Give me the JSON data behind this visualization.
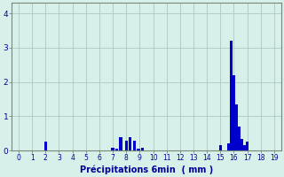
{
  "xlabel": "Précipitations 6min  ( mm )",
  "ylabel": "",
  "bar_color": "#0000cc",
  "background_color": "#d8f0ea",
  "grid_color": "#aaccc0",
  "xlim": [
    -0.5,
    19.5
  ],
  "ylim": [
    0,
    4.3
  ],
  "yticks": [
    0,
    1,
    2,
    3,
    4
  ],
  "xticks": [
    0,
    1,
    2,
    3,
    4,
    5,
    6,
    7,
    8,
    9,
    10,
    11,
    12,
    13,
    14,
    15,
    16,
    17,
    18,
    19
  ],
  "bar_positions": [
    2.0,
    7.0,
    7.3,
    7.6,
    8.0,
    8.3,
    8.6,
    8.9,
    9.2,
    15.0,
    15.6,
    15.8,
    16.0,
    16.2,
    16.4,
    16.6,
    16.8,
    17.0
  ],
  "bar_heights": [
    0.25,
    0.08,
    0.05,
    0.4,
    0.28,
    0.38,
    0.28,
    0.05,
    0.08,
    0.15,
    0.2,
    3.2,
    2.2,
    1.35,
    0.7,
    0.35,
    0.15,
    0.25
  ],
  "bar_width": 0.22,
  "figsize": [
    3.2,
    2.0
  ],
  "dpi": 100
}
